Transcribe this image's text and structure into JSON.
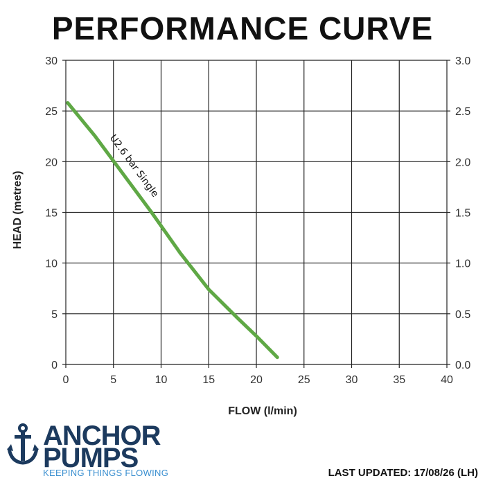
{
  "page_title": "PERFORMANCE CURVE",
  "chart_data": {
    "type": "line",
    "xlabel": "FLOW (l/min)",
    "ylabel": "HEAD (metres)",
    "xlim": [
      0,
      40
    ],
    "ylim": [
      0,
      30
    ],
    "ylim_right": [
      0,
      3.0
    ],
    "x_ticks": [
      "0",
      "5",
      "10",
      "15",
      "20",
      "25",
      "30",
      "35",
      "40"
    ],
    "y_ticks_left": [
      "0",
      "5",
      "10",
      "15",
      "20",
      "25",
      "30"
    ],
    "y_ticks_right": [
      "0.0",
      "0.5",
      "1.0",
      "1.5",
      "2.0",
      "2.5",
      "3.0"
    ],
    "grid": true,
    "series": [
      {
        "name": "U2.6 bar Single",
        "color": "#5fa845",
        "x": [
          0.2,
          3,
          6,
          9,
          12,
          15,
          18,
          20,
          22.2
        ],
        "y": [
          25.8,
          22.6,
          18.8,
          15.0,
          11.0,
          7.4,
          4.6,
          2.8,
          0.7
        ]
      }
    ]
  },
  "logo": {
    "line1": "ANCHOR",
    "line2": "PUMPS",
    "tagline": "KEEPING THINGS FLOWING",
    "icon": "anchor-icon",
    "brand_color": "#1c3a5e",
    "accent_color": "#3a8fd0"
  },
  "footer": {
    "last_updated": "LAST UPDATED: 17/08/26 (LH)"
  }
}
